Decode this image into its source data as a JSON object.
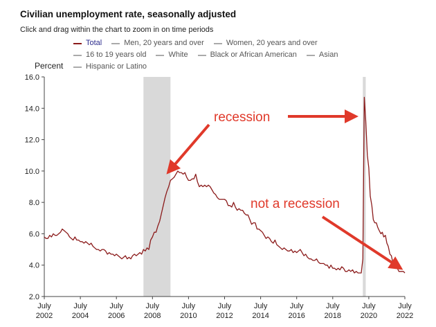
{
  "header": {
    "title": "Civilian unemployment rate, seasonally adjusted",
    "subtitle": "Click and drag within the chart to zoom in on time periods"
  },
  "legend": {
    "rows": [
      [
        {
          "label": "Total",
          "active": true
        },
        {
          "label": "Men, 20 years and over",
          "active": false
        },
        {
          "label": "Women, 20 years and over",
          "active": false
        }
      ],
      [
        {
          "label": "16 to 19 years old",
          "active": false
        },
        {
          "label": "White",
          "active": false
        },
        {
          "label": "Black or African American",
          "active": false
        },
        {
          "label": "Asian",
          "active": false
        }
      ],
      [
        {
          "label": "Hispanic or Latino",
          "active": false
        }
      ]
    ]
  },
  "colors": {
    "series": "#8b1a1a",
    "recession_band": "#d9d9d9",
    "annotation": "#e0392a",
    "axis": "#444444"
  },
  "chart_data": {
    "type": "line",
    "title": "Civilian unemployment rate, seasonally adjusted",
    "ylabel": "Percent",
    "xlabel": "",
    "ylim": [
      2.0,
      16.0
    ],
    "xlim": [
      2002.5,
      2022.5
    ],
    "y_ticks": [
      "2.0",
      "4.0",
      "6.0",
      "8.0",
      "10.0",
      "12.0",
      "14.0",
      "16.0"
    ],
    "x_ticks": [
      {
        "value": 2002.5,
        "line1": "July",
        "line2": "2002"
      },
      {
        "value": 2004.5,
        "line1": "July",
        "line2": "2004"
      },
      {
        "value": 2006.5,
        "line1": "July",
        "line2": "2006"
      },
      {
        "value": 2008.5,
        "line1": "July",
        "line2": "2008"
      },
      {
        "value": 2010.5,
        "line1": "July",
        "line2": "2010"
      },
      {
        "value": 2012.5,
        "line1": "July",
        "line2": "2012"
      },
      {
        "value": 2014.5,
        "line1": "July",
        "line2": "2014"
      },
      {
        "value": 2016.5,
        "line1": "July",
        "line2": "2016"
      },
      {
        "value": 2018.5,
        "line1": "July",
        "line2": "2018"
      },
      {
        "value": 2020.5,
        "line1": "July",
        "line2": "2020"
      },
      {
        "value": 2022.5,
        "line1": "July",
        "line2": "2022"
      }
    ],
    "recessions": [
      {
        "start": 2008.0,
        "end": 2009.5
      },
      {
        "start": 2020.17,
        "end": 2020.33
      }
    ],
    "series": [
      {
        "name": "Total",
        "points": [
          [
            2002.5,
            5.8
          ],
          [
            2002.6,
            5.7
          ],
          [
            2002.7,
            5.7
          ],
          [
            2002.8,
            5.9
          ],
          [
            2002.9,
            5.8
          ],
          [
            2003.0,
            6.0
          ],
          [
            2003.1,
            5.9
          ],
          [
            2003.2,
            5.9
          ],
          [
            2003.3,
            6.0
          ],
          [
            2003.4,
            6.1
          ],
          [
            2003.5,
            6.3
          ],
          [
            2003.6,
            6.2
          ],
          [
            2003.7,
            6.1
          ],
          [
            2003.8,
            6.0
          ],
          [
            2003.9,
            5.8
          ],
          [
            2004.0,
            5.7
          ],
          [
            2004.1,
            5.6
          ],
          [
            2004.2,
            5.8
          ],
          [
            2004.3,
            5.6
          ],
          [
            2004.4,
            5.6
          ],
          [
            2004.5,
            5.5
          ],
          [
            2004.6,
            5.5
          ],
          [
            2004.7,
            5.4
          ],
          [
            2004.8,
            5.5
          ],
          [
            2004.9,
            5.4
          ],
          [
            2005.0,
            5.3
          ],
          [
            2005.1,
            5.4
          ],
          [
            2005.2,
            5.2
          ],
          [
            2005.3,
            5.1
          ],
          [
            2005.4,
            5.0
          ],
          [
            2005.5,
            5.0
          ],
          [
            2005.6,
            4.9
          ],
          [
            2005.7,
            5.0
          ],
          [
            2005.8,
            5.0
          ],
          [
            2005.9,
            4.9
          ],
          [
            2006.0,
            4.7
          ],
          [
            2006.1,
            4.8
          ],
          [
            2006.2,
            4.7
          ],
          [
            2006.3,
            4.7
          ],
          [
            2006.4,
            4.6
          ],
          [
            2006.5,
            4.7
          ],
          [
            2006.6,
            4.6
          ],
          [
            2006.7,
            4.5
          ],
          [
            2006.8,
            4.4
          ],
          [
            2006.9,
            4.5
          ],
          [
            2007.0,
            4.6
          ],
          [
            2007.1,
            4.4
          ],
          [
            2007.2,
            4.5
          ],
          [
            2007.3,
            4.4
          ],
          [
            2007.4,
            4.6
          ],
          [
            2007.5,
            4.7
          ],
          [
            2007.6,
            4.6
          ],
          [
            2007.7,
            4.7
          ],
          [
            2007.8,
            4.8
          ],
          [
            2007.9,
            4.7
          ],
          [
            2008.0,
            5.0
          ],
          [
            2008.1,
            4.9
          ],
          [
            2008.2,
            5.1
          ],
          [
            2008.3,
            5.0
          ],
          [
            2008.4,
            5.6
          ],
          [
            2008.5,
            5.8
          ],
          [
            2008.6,
            6.1
          ],
          [
            2008.7,
            6.1
          ],
          [
            2008.8,
            6.5
          ],
          [
            2008.9,
            6.8
          ],
          [
            2009.0,
            7.3
          ],
          [
            2009.1,
            7.8
          ],
          [
            2009.2,
            8.3
          ],
          [
            2009.3,
            8.7
          ],
          [
            2009.4,
            9.0
          ],
          [
            2009.5,
            9.4
          ],
          [
            2009.6,
            9.5
          ],
          [
            2009.7,
            9.6
          ],
          [
            2009.8,
            9.8
          ],
          [
            2009.9,
            10.0
          ],
          [
            2010.0,
            9.9
          ],
          [
            2010.1,
            9.9
          ],
          [
            2010.2,
            9.8
          ],
          [
            2010.3,
            9.9
          ],
          [
            2010.4,
            9.6
          ],
          [
            2010.5,
            9.4
          ],
          [
            2010.6,
            9.4
          ],
          [
            2010.7,
            9.5
          ],
          [
            2010.8,
            9.5
          ],
          [
            2010.9,
            9.8
          ],
          [
            2011.0,
            9.3
          ],
          [
            2011.1,
            9.0
          ],
          [
            2011.2,
            9.1
          ],
          [
            2011.3,
            9.0
          ],
          [
            2011.4,
            9.1
          ],
          [
            2011.5,
            9.0
          ],
          [
            2011.6,
            9.1
          ],
          [
            2011.7,
            9.0
          ],
          [
            2011.8,
            8.8
          ],
          [
            2011.9,
            8.6
          ],
          [
            2012.0,
            8.5
          ],
          [
            2012.1,
            8.3
          ],
          [
            2012.2,
            8.2
          ],
          [
            2012.3,
            8.2
          ],
          [
            2012.4,
            8.2
          ],
          [
            2012.5,
            8.2
          ],
          [
            2012.6,
            8.1
          ],
          [
            2012.7,
            7.8
          ],
          [
            2012.8,
            7.8
          ],
          [
            2012.9,
            7.7
          ],
          [
            2013.0,
            8.0
          ],
          [
            2013.1,
            7.7
          ],
          [
            2013.2,
            7.5
          ],
          [
            2013.3,
            7.6
          ],
          [
            2013.4,
            7.5
          ],
          [
            2013.5,
            7.5
          ],
          [
            2013.6,
            7.3
          ],
          [
            2013.7,
            7.2
          ],
          [
            2013.8,
            7.2
          ],
          [
            2013.9,
            6.9
          ],
          [
            2014.0,
            6.6
          ],
          [
            2014.1,
            6.7
          ],
          [
            2014.2,
            6.7
          ],
          [
            2014.3,
            6.3
          ],
          [
            2014.4,
            6.3
          ],
          [
            2014.5,
            6.2
          ],
          [
            2014.6,
            6.1
          ],
          [
            2014.7,
            5.9
          ],
          [
            2014.8,
            5.7
          ],
          [
            2014.9,
            5.8
          ],
          [
            2015.0,
            5.7
          ],
          [
            2015.1,
            5.5
          ],
          [
            2015.2,
            5.4
          ],
          [
            2015.3,
            5.6
          ],
          [
            2015.4,
            5.3
          ],
          [
            2015.5,
            5.2
          ],
          [
            2015.6,
            5.1
          ],
          [
            2015.7,
            5.0
          ],
          [
            2015.8,
            5.1
          ],
          [
            2015.9,
            5.0
          ],
          [
            2016.0,
            4.9
          ],
          [
            2016.1,
            4.9
          ],
          [
            2016.2,
            5.0
          ],
          [
            2016.3,
            4.8
          ],
          [
            2016.4,
            4.9
          ],
          [
            2016.5,
            4.8
          ],
          [
            2016.6,
            4.9
          ],
          [
            2016.7,
            5.0
          ],
          [
            2016.8,
            4.8
          ],
          [
            2016.9,
            4.6
          ],
          [
            2017.0,
            4.7
          ],
          [
            2017.1,
            4.5
          ],
          [
            2017.2,
            4.4
          ],
          [
            2017.3,
            4.4
          ],
          [
            2017.4,
            4.3
          ],
          [
            2017.5,
            4.3
          ],
          [
            2017.6,
            4.4
          ],
          [
            2017.7,
            4.2
          ],
          [
            2017.8,
            4.1
          ],
          [
            2017.9,
            4.1
          ],
          [
            2018.0,
            4.1
          ],
          [
            2018.1,
            4.0
          ],
          [
            2018.2,
            4.0
          ],
          [
            2018.3,
            3.8
          ],
          [
            2018.4,
            4.0
          ],
          [
            2018.5,
            3.8
          ],
          [
            2018.6,
            3.8
          ],
          [
            2018.7,
            3.7
          ],
          [
            2018.8,
            3.8
          ],
          [
            2018.9,
            3.7
          ],
          [
            2019.0,
            3.9
          ],
          [
            2019.1,
            3.8
          ],
          [
            2019.2,
            3.6
          ],
          [
            2019.3,
            3.6
          ],
          [
            2019.4,
            3.7
          ],
          [
            2019.5,
            3.6
          ],
          [
            2019.6,
            3.7
          ],
          [
            2019.7,
            3.5
          ],
          [
            2019.8,
            3.6
          ],
          [
            2019.9,
            3.5
          ],
          [
            2020.0,
            3.5
          ],
          [
            2020.08,
            3.5
          ],
          [
            2020.17,
            4.4
          ],
          [
            2020.25,
            14.7
          ],
          [
            2020.33,
            13.2
          ],
          [
            2020.42,
            11.0
          ],
          [
            2020.5,
            10.2
          ],
          [
            2020.58,
            8.4
          ],
          [
            2020.67,
            7.8
          ],
          [
            2020.75,
            6.9
          ],
          [
            2020.83,
            6.7
          ],
          [
            2020.92,
            6.7
          ],
          [
            2021.0,
            6.4
          ],
          [
            2021.08,
            6.2
          ],
          [
            2021.17,
            6.0
          ],
          [
            2021.25,
            6.1
          ],
          [
            2021.33,
            5.8
          ],
          [
            2021.42,
            5.9
          ],
          [
            2021.5,
            5.4
          ],
          [
            2021.58,
            5.2
          ],
          [
            2021.67,
            4.7
          ],
          [
            2021.75,
            4.6
          ],
          [
            2021.83,
            4.2
          ],
          [
            2021.92,
            3.9
          ],
          [
            2022.0,
            4.0
          ],
          [
            2022.08,
            3.8
          ],
          [
            2022.17,
            3.6
          ],
          [
            2022.25,
            3.6
          ],
          [
            2022.33,
            3.6
          ],
          [
            2022.42,
            3.6
          ],
          [
            2022.5,
            3.5
          ]
        ]
      }
    ],
    "annotations": [
      {
        "text": "recession",
        "anchor": "upper-middle"
      },
      {
        "text": "not a recession",
        "anchor": "right-middle"
      }
    ]
  }
}
